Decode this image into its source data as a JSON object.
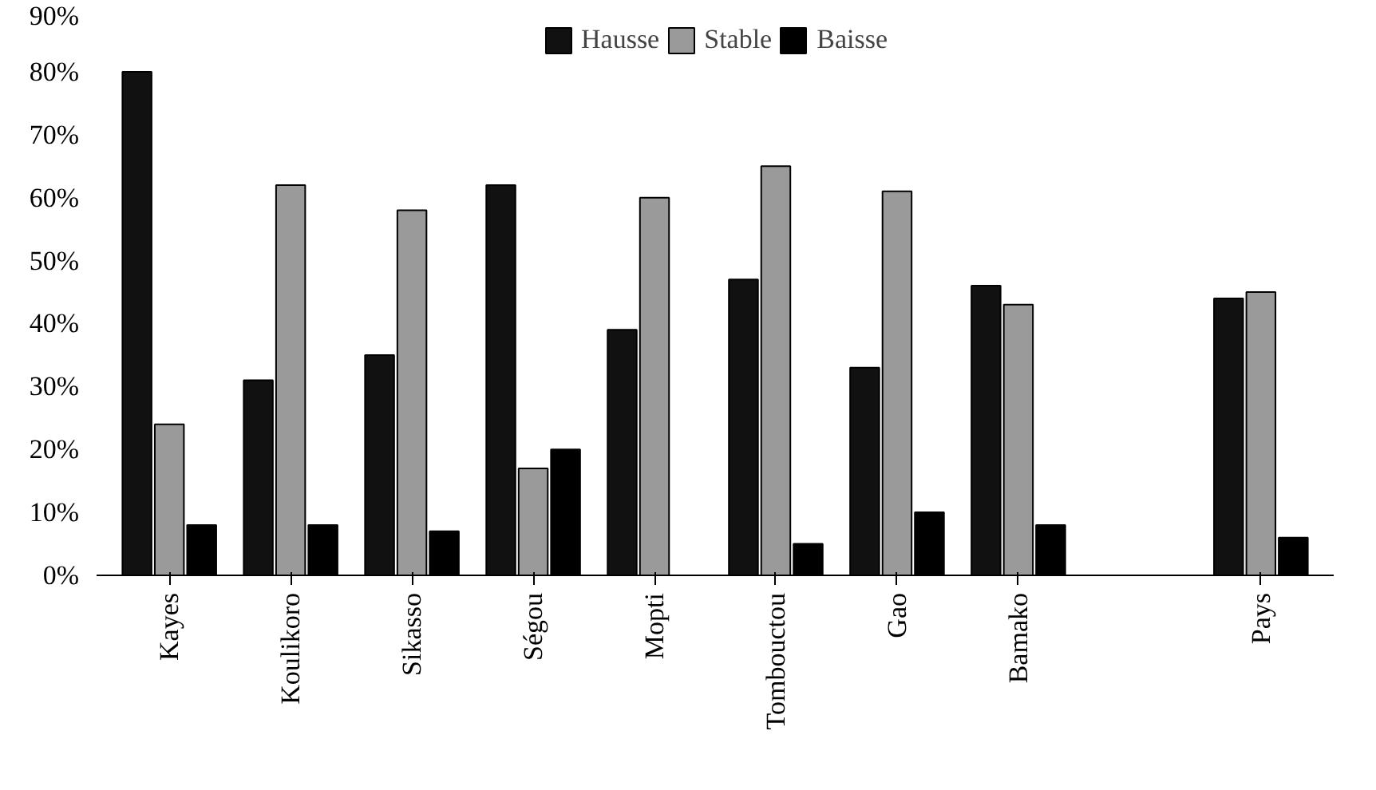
{
  "chart_data": {
    "type": "bar",
    "categories": [
      "Kayes",
      "Koulikoro",
      "Sikasso",
      "Ségou",
      "Mopti",
      "Tombouctou",
      "Gao",
      "Bamako",
      null,
      "Pays"
    ],
    "series": [
      {
        "name": "Hausse",
        "color": "#111111",
        "values": [
          80,
          31,
          35,
          62,
          39,
          47,
          33,
          46,
          null,
          44
        ]
      },
      {
        "name": "Stable",
        "color": "#9a9a9a",
        "values": [
          24,
          62,
          58,
          17,
          60,
          65,
          61,
          43,
          null,
          45
        ]
      },
      {
        "name": "Baisse",
        "color": "#000000",
        "values": [
          8,
          8,
          7,
          20,
          0,
          5,
          10,
          8,
          null,
          6
        ]
      }
    ],
    "ylim": [
      0,
      90
    ],
    "yticks": [
      {
        "value": 0,
        "label": "0%"
      },
      {
        "value": 10,
        "label": "10%"
      },
      {
        "value": 20,
        "label": "20%"
      },
      {
        "value": 30,
        "label": "30%"
      },
      {
        "value": 40,
        "label": "40%"
      },
      {
        "value": 50,
        "label": "50%"
      },
      {
        "value": 60,
        "label": "60%"
      },
      {
        "value": 70,
        "label": "70%"
      },
      {
        "value": 80,
        "label": "80%"
      },
      {
        "value": 90,
        "label": "90%"
      }
    ],
    "legend": "top center"
  }
}
